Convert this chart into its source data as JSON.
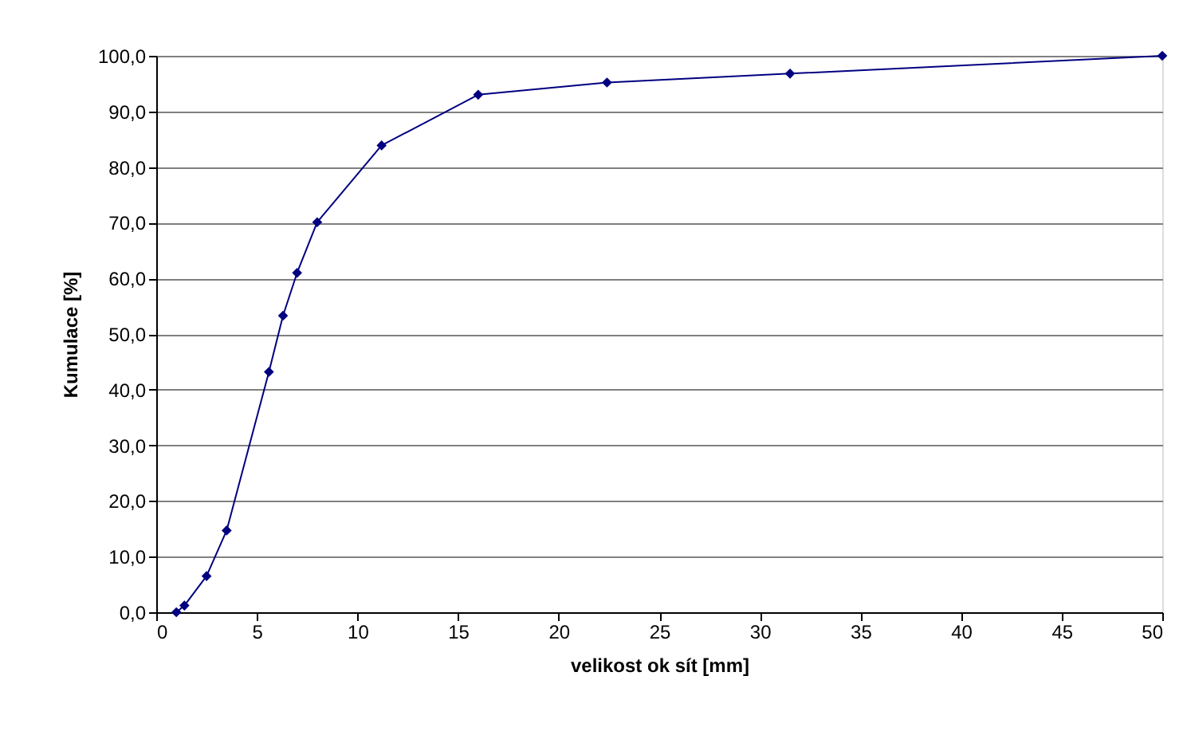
{
  "chart_data": {
    "type": "line",
    "xlabel": "velikost ok sít [mm]",
    "ylabel": "Kumulace [%]",
    "x": [
      1,
      1.4,
      2.5,
      3.5,
      5.6,
      6.3,
      7,
      8,
      11.2,
      16,
      22.4,
      31.5,
      50
    ],
    "series": [
      {
        "color": "#000080",
        "values": [
          0,
          1.2,
          6.5,
          14.7,
          43.2,
          53.3,
          61,
          70.1,
          83.9,
          93,
          95.2,
          96.8,
          100
        ]
      }
    ],
    "xlim": [
      0,
      50
    ],
    "xticks": [
      0,
      5,
      10,
      15,
      20,
      25,
      30,
      35,
      40,
      45,
      50
    ],
    "ylim": [
      0,
      100
    ],
    "yticks": [
      {
        "value": 0,
        "label": "0,0"
      },
      {
        "value": 10,
        "label": "10,0"
      },
      {
        "value": 20,
        "label": "20,0"
      },
      {
        "value": 30,
        "label": "30,0"
      },
      {
        "value": 40,
        "label": "40,0"
      },
      {
        "value": 50,
        "label": "50,0"
      },
      {
        "value": 60,
        "label": "60,0"
      },
      {
        "value": 70,
        "label": "70,0"
      },
      {
        "value": 80,
        "label": "80,0"
      },
      {
        "value": 90,
        "label": "90,0"
      },
      {
        "value": 100,
        "label": "100,0"
      }
    ],
    "grid": "y",
    "marker": "diamond",
    "line_style": "solid"
  }
}
